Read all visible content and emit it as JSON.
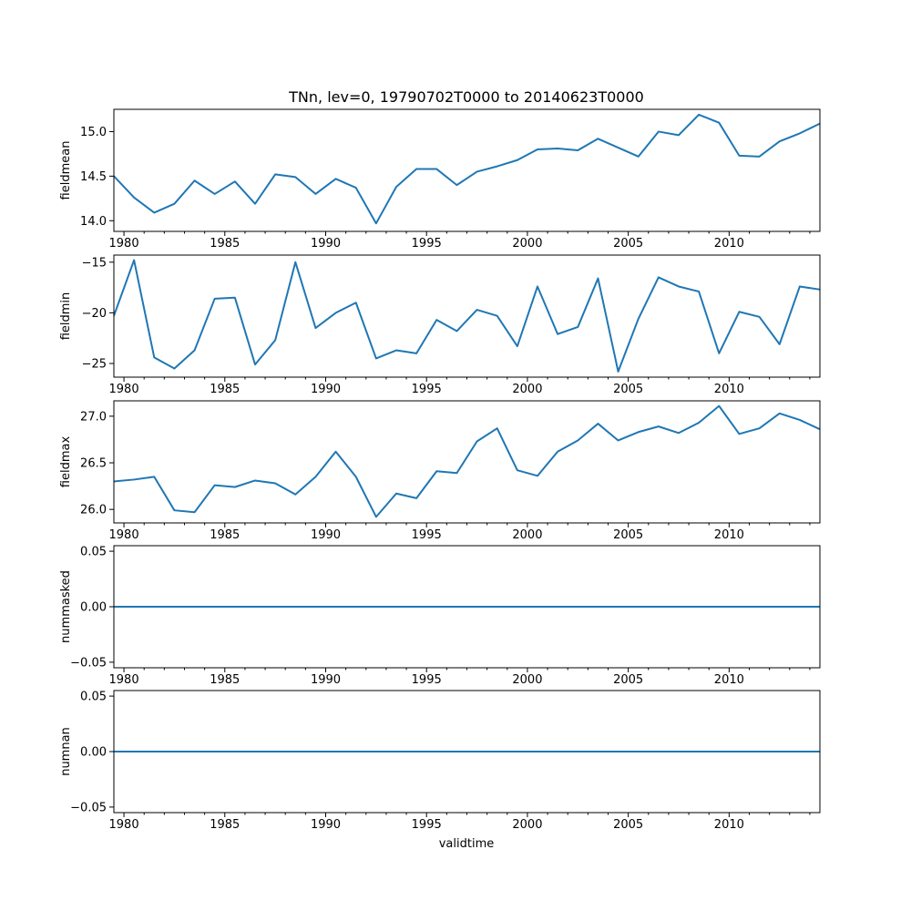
{
  "chart_data": {
    "type": "line",
    "title": "TNn, lev=0, 19790702T0000 to 20140623T0000",
    "xlabel": "validtime",
    "x": [
      1979.5,
      1980.5,
      1981.5,
      1982.5,
      1983.5,
      1984.5,
      1985.5,
      1986.5,
      1987.5,
      1988.5,
      1989.5,
      1990.5,
      1991.5,
      1992.5,
      1993.5,
      1994.5,
      1995.5,
      1996.5,
      1997.5,
      1998.5,
      1999.5,
      2000.5,
      2001.5,
      2002.5,
      2003.5,
      2004.5,
      2005.5,
      2006.5,
      2007.5,
      2008.5,
      2009.5,
      2010.5,
      2011.5,
      2012.5,
      2013.5,
      2014.5
    ],
    "xlim": [
      1979.5,
      2014.5
    ],
    "xticks": [
      1980,
      1985,
      1990,
      1995,
      2000,
      2005,
      2010
    ],
    "xtick_labels": [
      "1980",
      "1985",
      "1990",
      "1995",
      "2000",
      "2005",
      "2010"
    ],
    "panels": [
      {
        "ylabel": "fieldmean",
        "ylim": [
          13.88,
          15.25
        ],
        "yticks": [
          14.0,
          14.5,
          15.0
        ],
        "ytick_labels": [
          "14.0",
          "14.5",
          "15.0"
        ],
        "values": [
          14.5,
          14.26,
          14.09,
          14.19,
          14.45,
          14.3,
          14.44,
          14.19,
          14.52,
          14.49,
          14.3,
          14.47,
          14.37,
          13.97,
          14.38,
          14.58,
          14.58,
          14.4,
          14.55,
          14.61,
          14.68,
          14.8,
          14.81,
          14.79,
          14.92,
          14.82,
          14.72,
          15.0,
          14.96,
          15.19,
          15.1,
          14.73,
          14.72,
          14.89,
          14.98,
          15.09
        ]
      },
      {
        "ylabel": "fieldmin",
        "ylim": [
          -26.35,
          -14.3
        ],
        "yticks": [
          -25,
          -20,
          -15
        ],
        "ytick_labels": [
          "−25",
          "−20",
          "−15"
        ],
        "values": [
          -20.3,
          -14.8,
          -24.4,
          -25.5,
          -23.7,
          -18.6,
          -18.5,
          -25.1,
          -22.7,
          -15.0,
          -21.5,
          -20.0,
          -19.0,
          -24.5,
          -23.7,
          -24.0,
          -20.7,
          -21.8,
          -19.7,
          -20.3,
          -23.3,
          -17.4,
          -22.1,
          -21.4,
          -16.6,
          -25.8,
          -20.6,
          -16.5,
          -17.4,
          -17.9,
          -24.0,
          -19.9,
          -20.4,
          -23.1,
          -17.4,
          -17.7
        ]
      },
      {
        "ylabel": "fieldmax",
        "ylim": [
          25.855,
          27.165
        ],
        "yticks": [
          26.0,
          26.5,
          27.0
        ],
        "ytick_labels": [
          "26.0",
          "26.5",
          "27.0"
        ],
        "values": [
          26.3,
          26.32,
          26.35,
          25.99,
          25.97,
          26.26,
          26.24,
          26.31,
          26.28,
          26.16,
          26.35,
          26.62,
          26.35,
          25.92,
          26.17,
          26.12,
          26.41,
          26.39,
          26.73,
          26.87,
          26.42,
          26.36,
          26.62,
          26.74,
          26.92,
          26.74,
          26.83,
          26.89,
          26.82,
          26.93,
          27.11,
          26.81,
          26.87,
          27.03,
          26.96,
          26.86
        ]
      },
      {
        "ylabel": "nummasked",
        "ylim": [
          -0.055,
          0.055
        ],
        "yticks": [
          -0.05,
          0.0,
          0.05
        ],
        "ytick_labels": [
          "−0.05",
          "0.00",
          "0.05"
        ],
        "values": [
          0,
          0,
          0,
          0,
          0,
          0,
          0,
          0,
          0,
          0,
          0,
          0,
          0,
          0,
          0,
          0,
          0,
          0,
          0,
          0,
          0,
          0,
          0,
          0,
          0,
          0,
          0,
          0,
          0,
          0,
          0,
          0,
          0,
          0,
          0,
          0
        ]
      },
      {
        "ylabel": "numnan",
        "ylim": [
          -0.055,
          0.055
        ],
        "yticks": [
          -0.05,
          0.0,
          0.05
        ],
        "ytick_labels": [
          "−0.05",
          "0.00",
          "0.05"
        ],
        "values": [
          0,
          0,
          0,
          0,
          0,
          0,
          0,
          0,
          0,
          0,
          0,
          0,
          0,
          0,
          0,
          0,
          0,
          0,
          0,
          0,
          0,
          0,
          0,
          0,
          0,
          0,
          0,
          0,
          0,
          0,
          0,
          0,
          0,
          0,
          0,
          0
        ]
      }
    ],
    "colors": {
      "series": "#1f77b4",
      "axes": "#000000"
    }
  }
}
